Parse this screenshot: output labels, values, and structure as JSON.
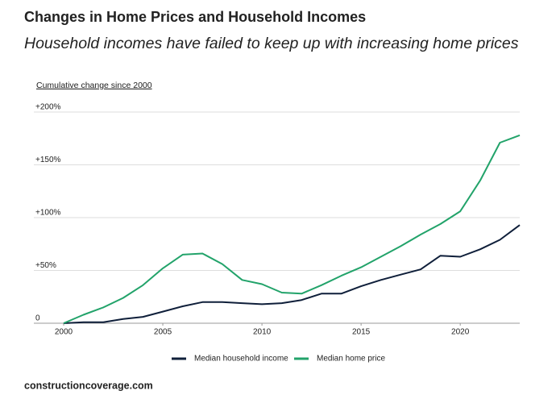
{
  "chart_data": {
    "type": "line",
    "title": "Changes in Home Prices and Household Incomes",
    "subtitle": "Household incomes have failed to keep up with increasing home prices",
    "y_label": "Cumulative change since 2000",
    "source": "constructioncoverage.com",
    "x": [
      2000,
      2001,
      2002,
      2003,
      2004,
      2005,
      2006,
      2007,
      2008,
      2009,
      2010,
      2011,
      2012,
      2013,
      2014,
      2015,
      2016,
      2017,
      2018,
      2019,
      2020,
      2021,
      2022,
      2023
    ],
    "series": [
      {
        "name": "Median household income",
        "color": "#0f1f3a",
        "values": [
          0,
          1,
          1,
          4,
          6,
          11,
          16,
          20,
          20,
          19,
          18,
          19,
          22,
          28,
          28,
          35,
          41,
          46,
          51,
          64,
          63,
          70,
          79,
          93
        ]
      },
      {
        "name": "Median home price",
        "color": "#22a36a",
        "values": [
          0,
          8,
          15,
          24,
          36,
          52,
          65,
          66,
          56,
          41,
          37,
          29,
          28,
          36,
          45,
          53,
          63,
          73,
          84,
          94,
          106,
          135,
          171,
          178
        ]
      }
    ],
    "xlim": [
      2000,
      2023
    ],
    "xticks": [
      2000,
      2005,
      2010,
      2015,
      2020
    ],
    "ylim": [
      0,
      200
    ],
    "yticks": [
      0,
      {
        "value": 50,
        "label": "+50%"
      },
      {
        "value": 100,
        "label": "+100%"
      },
      {
        "value": 150,
        "label": "+150%"
      },
      {
        "value": 200,
        "label": "+200%"
      }
    ],
    "grid": true,
    "legend": "bottom"
  }
}
